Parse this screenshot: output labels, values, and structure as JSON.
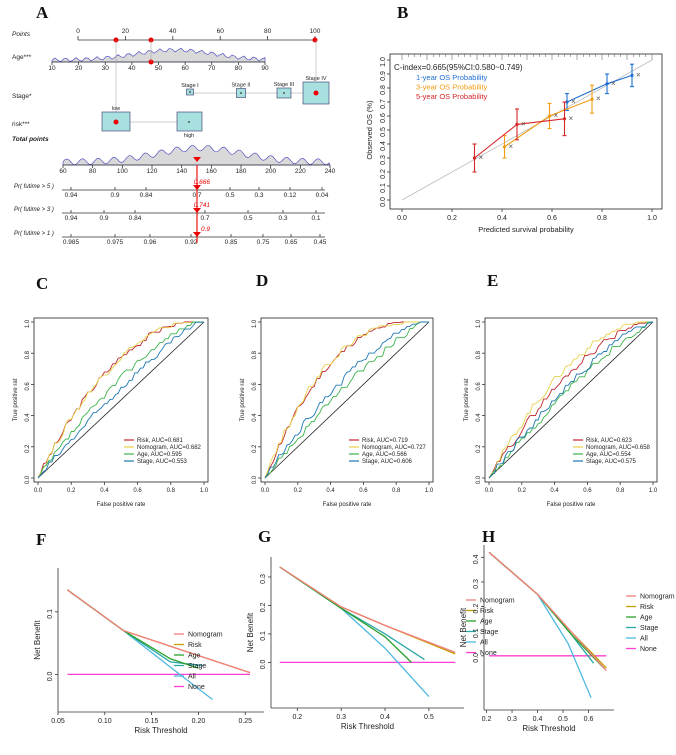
{
  "panel_letters": [
    "A",
    "B",
    "C",
    "D",
    "E",
    "F",
    "G",
    "H"
  ],
  "colors": {
    "risk": "#c0272d",
    "nomogram": "#e6d34a",
    "age": "#3cb44b",
    "stage": "#1f78b4",
    "all": "#4cb8e0",
    "none": "#ff3fd2",
    "nomo_dca": "#f08080",
    "risk_dca": "#c4a000",
    "age_dca": "#2aa02a",
    "stage_dca": "#29a8a8",
    "y1": "#1f6fd1",
    "y3": "#f39c12",
    "y5": "#d62728"
  },
  "nomogram": {
    "rows": [
      {
        "label": "Points",
        "ticks": [
          "0",
          "20",
          "40",
          "60",
          "80",
          "100"
        ]
      },
      {
        "label": "Age***",
        "ticks": [
          "10",
          "20",
          "30",
          "40",
          "50",
          "60",
          "70",
          "80",
          "90"
        ]
      },
      {
        "label": "Stage*",
        "levels": [
          "Stage I",
          "Stage II",
          "Stage III",
          "Stage IV"
        ]
      },
      {
        "label": "risk***",
        "levels": [
          "low",
          "high"
        ]
      },
      {
        "label": "Total points",
        "ticks": [
          "60",
          "80",
          "100",
          "120",
          "140",
          "160",
          "180",
          "200",
          "220",
          "240"
        ]
      },
      {
        "label": "Pr( futime > 5 )",
        "ticks": [
          "0.94",
          "0.9",
          "0.84",
          "0.7",
          "0.5",
          "0.3",
          "0.12",
          "0.04"
        ],
        "value": "0.666"
      },
      {
        "label": "Pr( futime > 3 )",
        "ticks": [
          "0.94",
          "0.9",
          "0.84",
          "0.7",
          "0.5",
          "0.3",
          "0.1"
        ],
        "value": "0.741"
      },
      {
        "label": "Pr( futime > 1 )",
        "ticks": [
          "0.985",
          "0.975",
          "0.96",
          "0.92",
          "0.85",
          "0.75",
          "0.65",
          "0.45"
        ],
        "value": "0.9"
      }
    ]
  },
  "chart_data": [
    {
      "panel": "B",
      "type": "scatter",
      "title": "C-index=0.665(95%CI:0.580~0.749)",
      "xlabel": "Predicted survival probability",
      "ylabel": "Observed OS (%)",
      "xlim": [
        0,
        1
      ],
      "ylim": [
        0,
        1
      ],
      "xticks": [
        "0.0",
        "0.2",
        "0.4",
        "0.6",
        "0.8",
        "1.0"
      ],
      "yticks": [
        "0.0",
        "0.1",
        "0.2",
        "0.3",
        "0.4",
        "0.5",
        "0.6",
        "0.7",
        "0.8",
        "0.9",
        "1.0"
      ],
      "series": [
        {
          "name": "1-year OS Probability",
          "x": [
            0.66,
            0.82,
            0.92
          ],
          "y": [
            0.7,
            0.83,
            0.89
          ]
        },
        {
          "name": "3-year OS Probability",
          "x": [
            0.41,
            0.59,
            0.76
          ],
          "y": [
            0.38,
            0.6,
            0.72
          ]
        },
        {
          "name": "5-year OS Probability",
          "x": [
            0.29,
            0.46,
            0.65
          ],
          "y": [
            0.3,
            0.54,
            0.58
          ]
        }
      ]
    },
    {
      "panel": "C",
      "type": "line",
      "xlabel": "False positive rate",
      "ylabel": "True positive rat",
      "xticks": [
        "0.0",
        "0.2",
        "0.4",
        "0.6",
        "0.8",
        "1.0"
      ],
      "yticks": [
        "0.0",
        "0.2",
        "0.4",
        "0.6",
        "0.8",
        "1.0"
      ],
      "legend": [
        "Risk, AUC=0.681",
        "Nomogram, AUC=0.682",
        "Age, AUC=0.595",
        "Stage, AUC=0.553"
      ]
    },
    {
      "panel": "D",
      "type": "line",
      "xlabel": "False positive rate",
      "ylabel": "True positive rat",
      "xticks": [
        "0.0",
        "0.2",
        "0.4",
        "0.6",
        "0.8",
        "1.0"
      ],
      "yticks": [
        "0.0",
        "0.2",
        "0.4",
        "0.6",
        "0.8",
        "1.0"
      ],
      "legend": [
        "Risk, AUC=0.719",
        "Nomogram, AUC=0.727",
        "Age, AUC=0.566",
        "Stage, AUC=0.606"
      ]
    },
    {
      "panel": "E",
      "type": "line",
      "xlabel": "False positive rate",
      "ylabel": "True positive rat",
      "xticks": [
        "0.0",
        "0.2",
        "0.4",
        "0.6",
        "0.8",
        "1.0"
      ],
      "yticks": [
        "0.0",
        "0.2",
        "0.4",
        "0.6",
        "0.8",
        "1.0"
      ],
      "legend": [
        "Risk, AUC=0.623",
        "Nomogram, AUC=0.658",
        "Age, AUC=0.554",
        "Stage, AUC=0.575"
      ]
    },
    {
      "panel": "F",
      "type": "line",
      "xlabel": "Risk Threshold",
      "ylabel": "Net Benefit",
      "xlim": [
        0.05,
        0.27
      ],
      "ylim": [
        -0.06,
        0.17
      ],
      "xticks": [
        "0.05",
        "0.10",
        "0.15",
        "0.20",
        "0.25"
      ],
      "yticks": [
        "0.0",
        "0.1"
      ],
      "legend": [
        "Nomogram",
        "Risk",
        "Age",
        "Stage",
        "All",
        "None"
      ],
      "series": [
        {
          "name": "All",
          "x": [
            0.06,
            0.12,
            0.18,
            0.215
          ],
          "y": [
            0.135,
            0.07,
            0.0,
            -0.04
          ]
        },
        {
          "name": "Nomogram",
          "x": [
            0.06,
            0.12,
            0.18,
            0.255
          ],
          "y": [
            0.135,
            0.07,
            0.04,
            0.003
          ]
        },
        {
          "name": "Risk",
          "x": [
            0.06,
            0.12,
            0.18,
            0.255
          ],
          "y": [
            0.135,
            0.07,
            0.04,
            0.003
          ]
        },
        {
          "name": "Age",
          "x": [
            0.06,
            0.12,
            0.17,
            0.2
          ],
          "y": [
            0.135,
            0.07,
            0.025,
            0.01
          ]
        },
        {
          "name": "Stage",
          "x": [
            0.06,
            0.12,
            0.17,
            0.205
          ],
          "y": [
            0.135,
            0.07,
            0.02,
            0.014
          ]
        },
        {
          "name": "None",
          "x": [
            0.06,
            0.255
          ],
          "y": [
            0,
            0
          ]
        }
      ]
    },
    {
      "panel": "G",
      "type": "line",
      "xlabel": "Risk Threshold",
      "ylabel": "Net Benefit",
      "xlim": [
        0.14,
        0.58
      ],
      "ylim": [
        -0.16,
        0.37
      ],
      "xticks": [
        "0.2",
        "0.3",
        "0.4",
        "0.5"
      ],
      "yticks": [
        "0.0",
        "0.1",
        "0.2",
        "0.3"
      ],
      "legend": [
        "Nomogram",
        "Risk",
        "Age",
        "Stage",
        "All",
        "None"
      ],
      "series": [
        {
          "name": "All",
          "x": [
            0.16,
            0.3,
            0.4,
            0.5
          ],
          "y": [
            0.335,
            0.19,
            0.05,
            -0.12
          ]
        },
        {
          "name": "Nomogram",
          "x": [
            0.16,
            0.3,
            0.4,
            0.56
          ],
          "y": [
            0.335,
            0.195,
            0.13,
            0.035
          ]
        },
        {
          "name": "Risk",
          "x": [
            0.16,
            0.3,
            0.4,
            0.56
          ],
          "y": [
            0.335,
            0.195,
            0.13,
            0.03
          ]
        },
        {
          "name": "Age",
          "x": [
            0.16,
            0.3,
            0.4,
            0.46
          ],
          "y": [
            0.335,
            0.19,
            0.09,
            0.0
          ]
        },
        {
          "name": "Stage",
          "x": [
            0.16,
            0.3,
            0.4,
            0.49
          ],
          "y": [
            0.335,
            0.19,
            0.1,
            0.01
          ]
        },
        {
          "name": "None",
          "x": [
            0.16,
            0.56
          ],
          "y": [
            0,
            0
          ]
        }
      ]
    },
    {
      "panel": "H",
      "type": "line",
      "xlabel": "Risk Threshold",
      "ylabel": "Net Benefit",
      "xlim": [
        0.19,
        0.7
      ],
      "ylim": [
        -0.22,
        0.45
      ],
      "xticks": [
        "0.2",
        "0.3",
        "0.4",
        "0.5",
        "0.6"
      ],
      "yticks": [
        "0.0",
        "0.1",
        "0.2",
        "0.3",
        "0.4"
      ],
      "legend": [
        "Nomogram",
        "Risk",
        "Age",
        "Stage",
        "All",
        "None"
      ],
      "series": [
        {
          "name": "All",
          "x": [
            0.21,
            0.4,
            0.52,
            0.61
          ],
          "y": [
            0.42,
            0.25,
            0.05,
            -0.17
          ]
        },
        {
          "name": "Nomogram",
          "x": [
            0.21,
            0.4,
            0.53,
            0.67
          ],
          "y": [
            0.42,
            0.25,
            0.1,
            -0.06
          ]
        },
        {
          "name": "Risk",
          "x": [
            0.21,
            0.4,
            0.53,
            0.67
          ],
          "y": [
            0.42,
            0.25,
            0.1,
            -0.05
          ]
        },
        {
          "name": "Age",
          "x": [
            0.21,
            0.4,
            0.53,
            0.66
          ],
          "y": [
            0.42,
            0.25,
            0.09,
            -0.05
          ]
        },
        {
          "name": "Stage",
          "x": [
            0.21,
            0.4,
            0.53,
            0.62
          ],
          "y": [
            0.42,
            0.25,
            0.09,
            -0.03
          ]
        },
        {
          "name": "None",
          "x": [
            0.21,
            0.67
          ],
          "y": [
            0,
            0
          ]
        }
      ]
    }
  ]
}
